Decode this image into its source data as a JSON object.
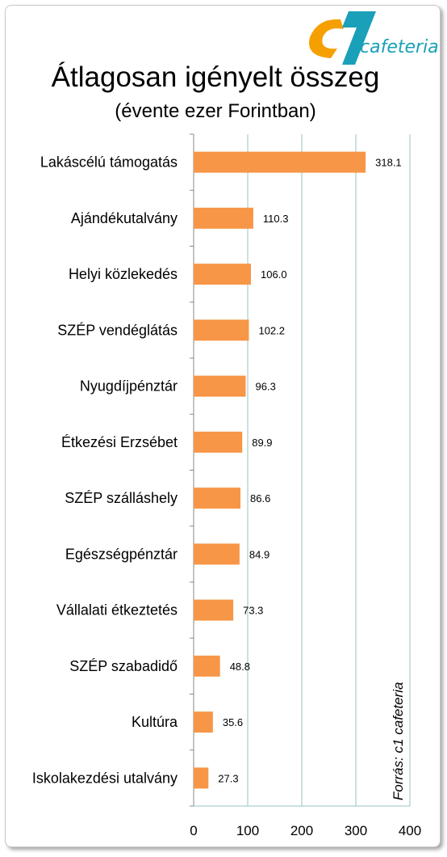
{
  "chart_data": {
    "type": "bar",
    "orientation": "horizontal",
    "title": "Átlagosan igényelt összeg",
    "subtitle": "(évente ezer Forintban)",
    "categories": [
      "Lakáscélú támogatás",
      "Ajándékutalvány",
      "Helyi közlekedés",
      "SZÉP vendéglátás",
      "Nyugdíjpénztár",
      "Étkezési Erzsébet",
      "SZÉP szálláshely",
      "Egészségpénztár",
      "Vállalati étkeztetés",
      "SZÉP szabadidő",
      "Kultúra",
      "Iskolakezdési utalvány"
    ],
    "values": [
      318.1,
      110.3,
      106.0,
      102.2,
      96.3,
      89.9,
      86.6,
      84.9,
      73.3,
      48.8,
      35.6,
      27.3
    ],
    "data_labels": [
      "318.1",
      "110.3",
      "106.0",
      "102.2",
      "96.3",
      "89.9",
      "86.6",
      "84.9",
      "73.3",
      "48.8",
      "35.6",
      "27.3"
    ],
    "xlim": [
      0,
      400
    ],
    "xticks": [
      "0",
      "100",
      "200",
      "300",
      "400"
    ],
    "grid": true,
    "bar_color": "#f79646",
    "grid_color": "#9bc1c1"
  },
  "source_note": "Forrás: c1 cafeteria",
  "logo": {
    "mark": "c1",
    "text": "cafeteria",
    "mark_color": "#f5a000",
    "text_color": "#1aa0b8"
  }
}
